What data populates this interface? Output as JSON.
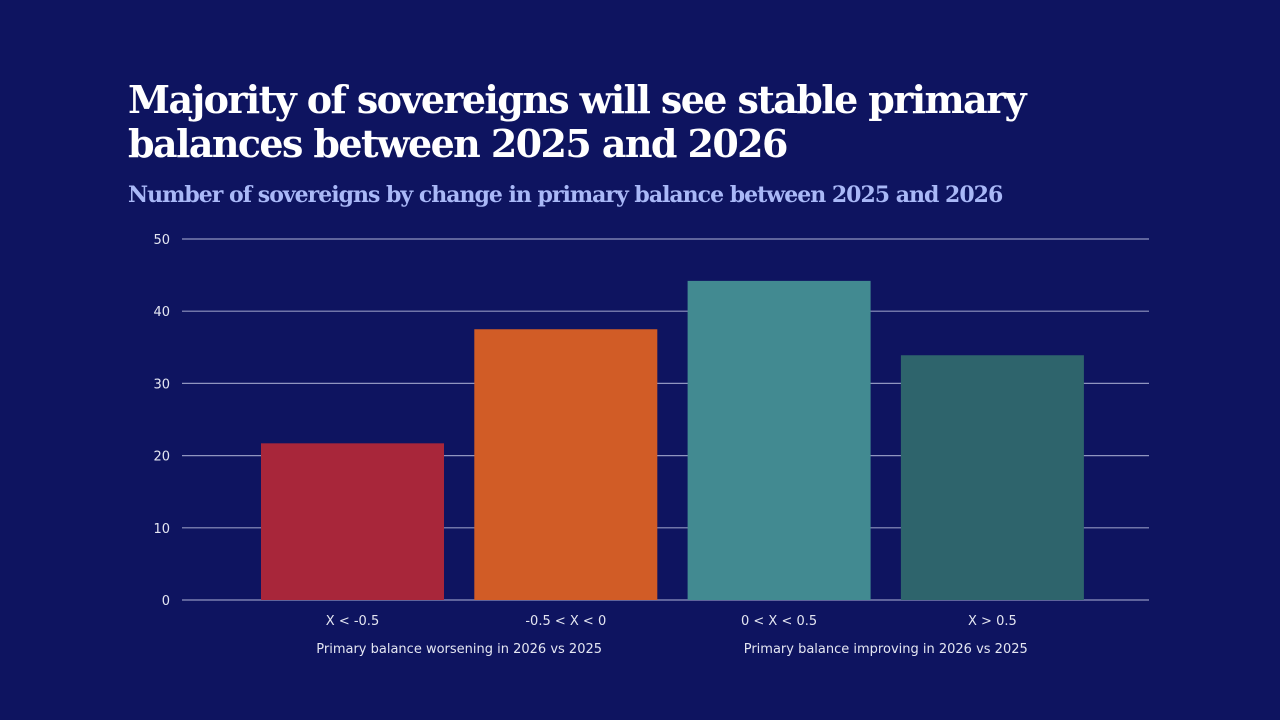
{
  "chart_data": {
    "type": "bar",
    "title": "Majority of sovereigns will see stable primary balances between 2025 and 2026",
    "subtitle": "Number of sovereigns by change in primary balance between 2025 and 2026",
    "xlabel": "",
    "ylabel": "",
    "categories": [
      "X < -0.5",
      "-0.5 < X < 0",
      "0 < X < 0.5",
      "X > 0.5"
    ],
    "values": [
      21.7,
      37.5,
      44.2,
      33.9
    ],
    "colors": [
      "#a8263a",
      "#d15c26",
      "#428a91",
      "#2e646c"
    ],
    "ylim": [
      0,
      50
    ],
    "yticks": [
      0,
      10,
      20,
      30,
      40,
      50
    ],
    "grid": true,
    "group_labels": [
      {
        "text": "Primary balance worsening in 2026 vs 2025",
        "spans": [
          0,
          1
        ]
      },
      {
        "text": "Primary balance improving in 2026 vs 2025",
        "spans": [
          2,
          3
        ]
      }
    ]
  },
  "colors": {
    "background": "#0e1460",
    "title": "#ffffff",
    "subtitle": "#a9b8f7",
    "grid": "#9095c0"
  }
}
